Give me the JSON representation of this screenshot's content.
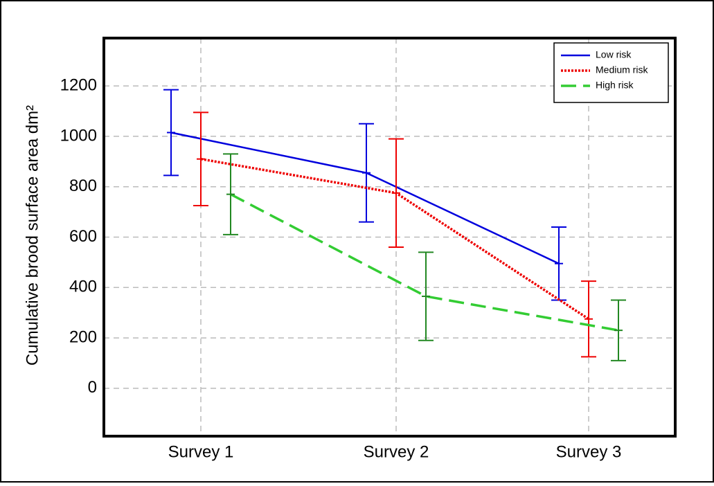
{
  "chart_data": {
    "type": "line",
    "y_label": "Cumulative brood surface area dm²",
    "categories": [
      "Survey 1",
      "Survey 2",
      "Survey 3"
    ],
    "series": [
      {
        "name": "Low risk",
        "color": "#0000dd",
        "error_color": "#0000dd",
        "line_style": "solid",
        "values": [
          1015,
          855,
          495
        ],
        "errors": [
          170,
          195,
          145
        ]
      },
      {
        "name": "Medium risk",
        "color": "#ee0000",
        "error_color": "#ee0000",
        "line_style": "dotted",
        "values": [
          910,
          775,
          275
        ],
        "errors": [
          185,
          215,
          150
        ]
      },
      {
        "name": "High risk",
        "color": "#33cc33",
        "error_color": "#228822",
        "line_style": "dashed",
        "values": [
          770,
          365,
          230
        ],
        "errors": [
          160,
          175,
          120
        ]
      }
    ],
    "ylim": [
      -190,
      1390
    ],
    "yticks": [
      0,
      200,
      400,
      600,
      800,
      1000,
      1200
    ],
    "grid": true,
    "legend": "upper right"
  }
}
